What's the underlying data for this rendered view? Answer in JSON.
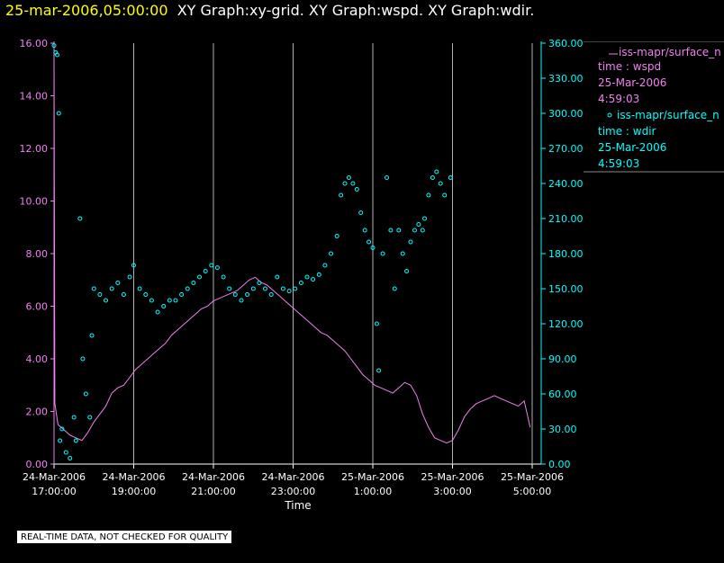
{
  "title": {
    "time": "25-mar-2006,05:00:00",
    "graphs": "XY Graph:xy-grid.  XY Graph:wspd.  XY Graph:wdir."
  },
  "legend": {
    "wspd": {
      "source": "iss-mapr/surface_n",
      "line1": "time : wspd",
      "line2": "25-Mar-2006",
      "line3": "4:59:03"
    },
    "wdir": {
      "source": "iss-mapr/surface_n",
      "line1": "time : wdir",
      "line2": "25-Mar-2006",
      "line3": "4:59:03"
    }
  },
  "disclaimer": "REAL-TIME DATA, NOT CHECKED FOR QUALITY",
  "colors": {
    "wspd": "#ee82ee",
    "wdir": "#00ffff",
    "title_time": "#ffff00",
    "grid": "#b0b0b0"
  },
  "chart_data": {
    "type": "line",
    "xlabel": "Time",
    "x_ticks": [
      {
        "d": "24-Mar-2006",
        "t": "17:00:00"
      },
      {
        "d": "24-Mar-2006",
        "t": "19:00:00"
      },
      {
        "d": "24-Mar-2006",
        "t": "21:00:00"
      },
      {
        "d": "24-Mar-2006",
        "t": "23:00:00"
      },
      {
        "d": "25-Mar-2006",
        "t": "1:00:00"
      },
      {
        "d": "25-Mar-2006",
        "t": "3:00:00"
      },
      {
        "d": "25-Mar-2006",
        "t": "5:00:00"
      }
    ],
    "xlim": [
      "24-Mar-2006 17:00:00",
      "25-Mar-2006 5:00:00"
    ],
    "y_left_ticks": [
      "0.00",
      "2.00",
      "4.00",
      "6.00",
      "8.00",
      "10.00",
      "12.00",
      "14.00",
      "16.00"
    ],
    "y_right_ticks": [
      "0.00",
      "30.00",
      "60.00",
      "90.00",
      "120.00",
      "150.00",
      "180.00",
      "210.00",
      "240.00",
      "270.00",
      "300.00",
      "330.00",
      "360.00"
    ],
    "ylim_left": [
      0,
      16
    ],
    "ylim_right": [
      0,
      360
    ],
    "grid": "vertical lines at x ticks",
    "series": [
      {
        "name": "wspd",
        "axis": "left",
        "style": "line",
        "points": [
          [
            0.0,
            15.8
          ],
          [
            0.02,
            2.3
          ],
          [
            0.1,
            1.5
          ],
          [
            0.25,
            1.3
          ],
          [
            0.4,
            1.1
          ],
          [
            0.55,
            1.0
          ],
          [
            0.7,
            0.9
          ],
          [
            0.85,
            1.2
          ],
          [
            1.0,
            1.6
          ],
          [
            1.15,
            1.9
          ],
          [
            1.3,
            2.2
          ],
          [
            1.45,
            2.7
          ],
          [
            1.6,
            2.9
          ],
          [
            1.75,
            3.0
          ],
          [
            1.9,
            3.3
          ],
          [
            2.05,
            3.6
          ],
          [
            2.2,
            3.8
          ],
          [
            2.35,
            4.0
          ],
          [
            2.5,
            4.2
          ],
          [
            2.65,
            4.4
          ],
          [
            2.8,
            4.6
          ],
          [
            2.95,
            4.9
          ],
          [
            3.1,
            5.1
          ],
          [
            3.25,
            5.3
          ],
          [
            3.4,
            5.5
          ],
          [
            3.55,
            5.7
          ],
          [
            3.7,
            5.9
          ],
          [
            3.85,
            6.0
          ],
          [
            4.0,
            6.2
          ],
          [
            4.15,
            6.3
          ],
          [
            4.3,
            6.4
          ],
          [
            4.45,
            6.5
          ],
          [
            4.6,
            6.6
          ],
          [
            4.75,
            6.8
          ],
          [
            4.9,
            7.0
          ],
          [
            5.05,
            7.1
          ],
          [
            5.2,
            6.9
          ],
          [
            5.35,
            6.8
          ],
          [
            5.5,
            6.6
          ],
          [
            5.65,
            6.4
          ],
          [
            5.8,
            6.2
          ],
          [
            5.95,
            6.0
          ],
          [
            6.1,
            5.8
          ],
          [
            6.25,
            5.6
          ],
          [
            6.4,
            5.4
          ],
          [
            6.55,
            5.2
          ],
          [
            6.7,
            5.0
          ],
          [
            6.85,
            4.9
          ],
          [
            7.0,
            4.7
          ],
          [
            7.15,
            4.5
          ],
          [
            7.3,
            4.3
          ],
          [
            7.45,
            4.0
          ],
          [
            7.6,
            3.7
          ],
          [
            7.75,
            3.4
          ],
          [
            7.9,
            3.2
          ],
          [
            8.05,
            3.0
          ],
          [
            8.2,
            2.9
          ],
          [
            8.35,
            2.8
          ],
          [
            8.5,
            2.7
          ],
          [
            8.65,
            2.9
          ],
          [
            8.8,
            3.1
          ],
          [
            8.95,
            3.0
          ],
          [
            9.1,
            2.6
          ],
          [
            9.25,
            1.9
          ],
          [
            9.4,
            1.4
          ],
          [
            9.55,
            1.0
          ],
          [
            9.7,
            0.9
          ],
          [
            9.85,
            0.8
          ],
          [
            10.0,
            0.9
          ],
          [
            10.15,
            1.3
          ],
          [
            10.3,
            1.8
          ],
          [
            10.45,
            2.1
          ],
          [
            10.6,
            2.3
          ],
          [
            10.75,
            2.4
          ],
          [
            10.9,
            2.5
          ],
          [
            11.05,
            2.6
          ],
          [
            11.2,
            2.5
          ],
          [
            11.35,
            2.4
          ],
          [
            11.5,
            2.3
          ],
          [
            11.65,
            2.2
          ],
          [
            11.8,
            2.4
          ],
          [
            11.95,
            1.4
          ]
        ]
      },
      {
        "name": "wdir",
        "axis": "right",
        "style": "markers",
        "points": [
          [
            0.0,
            358
          ],
          [
            0.04,
            352
          ],
          [
            0.08,
            350
          ],
          [
            0.12,
            300
          ],
          [
            0.15,
            20
          ],
          [
            0.2,
            30
          ],
          [
            0.3,
            10
          ],
          [
            0.4,
            5
          ],
          [
            0.5,
            40
          ],
          [
            0.55,
            20
          ],
          [
            0.65,
            210
          ],
          [
            0.72,
            90
          ],
          [
            0.8,
            60
          ],
          [
            0.9,
            40
          ],
          [
            0.95,
            110
          ],
          [
            1.0,
            150
          ],
          [
            1.15,
            145
          ],
          [
            1.3,
            140
          ],
          [
            1.45,
            150
          ],
          [
            1.6,
            155
          ],
          [
            1.75,
            145
          ],
          [
            1.9,
            160
          ],
          [
            2.0,
            170
          ],
          [
            2.15,
            150
          ],
          [
            2.3,
            145
          ],
          [
            2.45,
            140
          ],
          [
            2.6,
            130
          ],
          [
            2.75,
            135
          ],
          [
            2.9,
            140
          ],
          [
            3.05,
            140
          ],
          [
            3.2,
            145
          ],
          [
            3.35,
            150
          ],
          [
            3.5,
            155
          ],
          [
            3.65,
            160
          ],
          [
            3.8,
            165
          ],
          [
            3.95,
            170
          ],
          [
            4.1,
            168
          ],
          [
            4.25,
            160
          ],
          [
            4.4,
            150
          ],
          [
            4.55,
            145
          ],
          [
            4.7,
            140
          ],
          [
            4.85,
            145
          ],
          [
            5.0,
            150
          ],
          [
            5.15,
            155
          ],
          [
            5.3,
            150
          ],
          [
            5.45,
            145
          ],
          [
            5.6,
            160
          ],
          [
            5.75,
            150
          ],
          [
            5.9,
            148
          ],
          [
            6.05,
            150
          ],
          [
            6.2,
            155
          ],
          [
            6.35,
            160
          ],
          [
            6.5,
            158
          ],
          [
            6.65,
            162
          ],
          [
            6.8,
            170
          ],
          [
            6.95,
            180
          ],
          [
            7.1,
            195
          ],
          [
            7.2,
            230
          ],
          [
            7.3,
            240
          ],
          [
            7.4,
            245
          ],
          [
            7.5,
            240
          ],
          [
            7.6,
            235
          ],
          [
            7.7,
            215
          ],
          [
            7.8,
            200
          ],
          [
            7.9,
            190
          ],
          [
            8.0,
            185
          ],
          [
            8.1,
            120
          ],
          [
            8.15,
            80
          ],
          [
            8.25,
            180
          ],
          [
            8.35,
            245
          ],
          [
            8.45,
            200
          ],
          [
            8.55,
            150
          ],
          [
            8.65,
            200
          ],
          [
            8.75,
            180
          ],
          [
            8.85,
            165
          ],
          [
            8.95,
            190
          ],
          [
            9.05,
            200
          ],
          [
            9.15,
            205
          ],
          [
            9.25,
            200
          ],
          [
            9.3,
            210
          ],
          [
            9.4,
            230
          ],
          [
            9.5,
            245
          ],
          [
            9.6,
            250
          ],
          [
            9.7,
            240
          ],
          [
            9.8,
            230
          ],
          [
            9.95,
            245
          ]
        ]
      }
    ]
  }
}
